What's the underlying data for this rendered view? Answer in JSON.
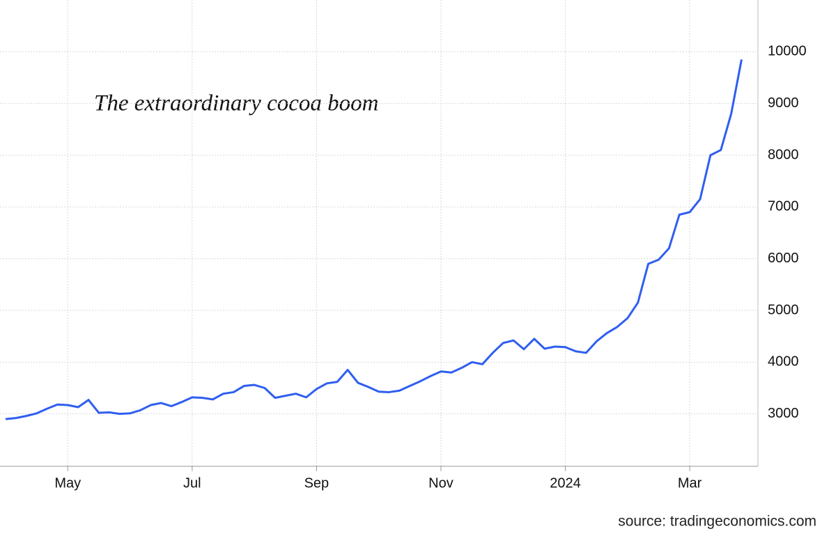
{
  "chart_data": {
    "type": "line",
    "annotation": "The extraordinary cocoa boom",
    "source": "source: tradingeconomics.com",
    "categories": [
      null,
      null,
      null,
      null,
      null,
      null,
      "May",
      null,
      null,
      null,
      null,
      null,
      null,
      null,
      null,
      null,
      null,
      null,
      "Jul",
      null,
      null,
      null,
      null,
      null,
      null,
      null,
      null,
      null,
      null,
      null,
      "Sep",
      null,
      null,
      null,
      null,
      null,
      null,
      null,
      null,
      null,
      null,
      null,
      "Nov",
      null,
      null,
      null,
      null,
      null,
      null,
      null,
      null,
      null,
      null,
      null,
      "2024",
      null,
      null,
      null,
      null,
      null,
      null,
      null,
      null,
      null,
      null,
      null,
      "Mar",
      null,
      null,
      null,
      null,
      null
    ],
    "series": [
      {
        "name": "Cocoa",
        "color": "#2f5ef0",
        "values": [
          2900,
          2920,
          2960,
          3010,
          3100,
          3180,
          3170,
          3130,
          3270,
          3020,
          3030,
          3000,
          3010,
          3070,
          3170,
          3210,
          3150,
          3230,
          3320,
          3310,
          3280,
          3390,
          3420,
          3540,
          3560,
          3500,
          3310,
          3350,
          3390,
          3320,
          3480,
          3590,
          3620,
          3850,
          3600,
          3520,
          3430,
          3420,
          3450,
          3540,
          3630,
          3730,
          3820,
          3800,
          3890,
          4000,
          3960,
          4180,
          4370,
          4420,
          4250,
          4450,
          4260,
          4300,
          4290,
          4210,
          4180,
          4400,
          4560,
          4680,
          4850,
          5150,
          5900,
          5980,
          6200,
          6850,
          6900,
          7150,
          8000,
          8100,
          8800,
          9850
        ]
      }
    ],
    "ylim": [
      2000,
      11000
    ],
    "yticks": [
      3000,
      4000,
      5000,
      6000,
      7000,
      8000,
      9000,
      10000
    ],
    "grid": true
  }
}
